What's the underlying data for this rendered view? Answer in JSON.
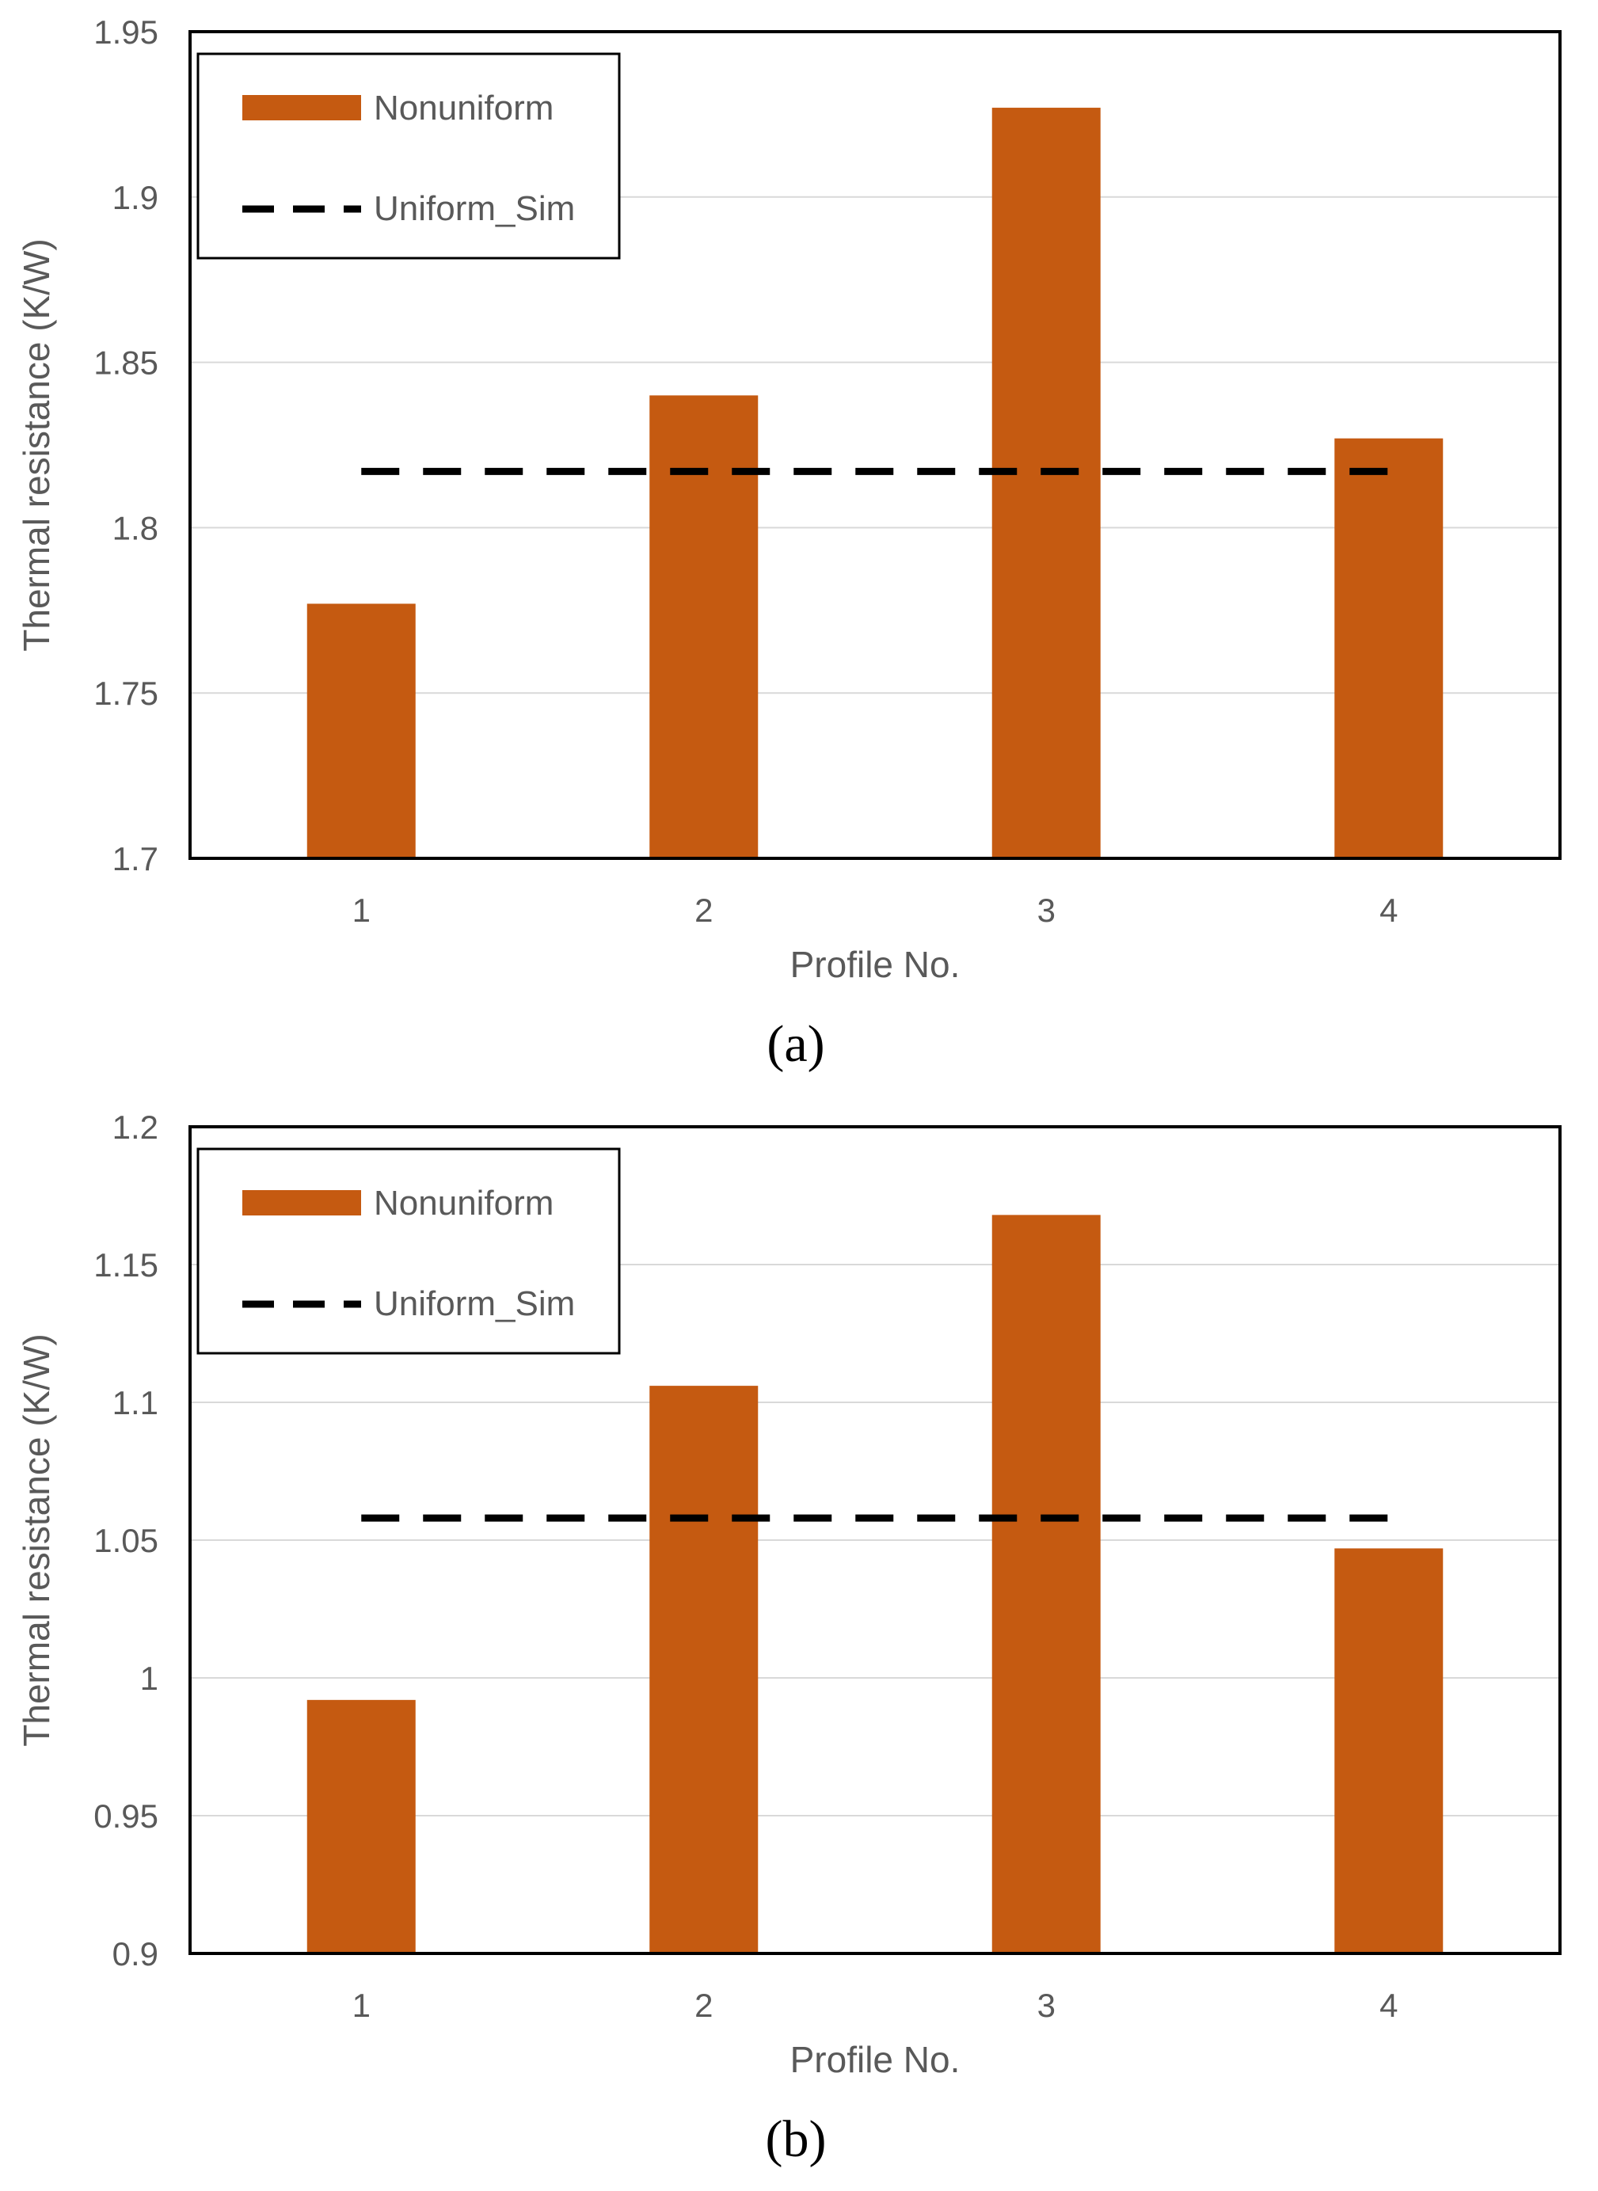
{
  "colors": {
    "bar": "#C55A11",
    "line": "#000000",
    "grid": "#D9D9D9",
    "frame": "#000000",
    "text": "#595959"
  },
  "chart_data": [
    {
      "type": "bar",
      "panel_label": "(a)",
      "title": "",
      "xlabel": "Profile No.",
      "ylabel": "Thermal resistance (K/W)",
      "categories": [
        "1",
        "2",
        "3",
        "4"
      ],
      "ylim": [
        1.7,
        1.95
      ],
      "yticks": [
        1.7,
        1.75,
        1.8,
        1.85,
        1.9,
        1.95
      ],
      "ytick_labels": [
        "1.7",
        "1.75",
        "1.8",
        "1.85",
        "1.9",
        "1.95"
      ],
      "grid": true,
      "legend_position": "top-left",
      "series": [
        {
          "name": "Nonuniform",
          "kind": "bar",
          "values": [
            1.777,
            1.84,
            1.927,
            1.827
          ]
        },
        {
          "name": "Uniform_Sim",
          "kind": "dashed-line",
          "values": [
            1.817,
            1.817,
            1.817,
            1.817
          ]
        }
      ]
    },
    {
      "type": "bar",
      "panel_label": "(b)",
      "title": "",
      "xlabel": "Profile No.",
      "ylabel": "Thermal resistance (K/W)",
      "categories": [
        "1",
        "2",
        "3",
        "4"
      ],
      "ylim": [
        0.9,
        1.2
      ],
      "yticks": [
        0.9,
        0.95,
        1.0,
        1.05,
        1.1,
        1.15,
        1.2
      ],
      "ytick_labels": [
        "0.9",
        "0.95",
        "1",
        "1.05",
        "1.1",
        "1.15",
        "1.2"
      ],
      "grid": true,
      "legend_position": "top-left",
      "series": [
        {
          "name": "Nonuniform",
          "kind": "bar",
          "values": [
            0.992,
            1.106,
            1.168,
            1.047
          ]
        },
        {
          "name": "Uniform_Sim",
          "kind": "dashed-line",
          "values": [
            1.058,
            1.058,
            1.058,
            1.058
          ]
        }
      ]
    }
  ]
}
